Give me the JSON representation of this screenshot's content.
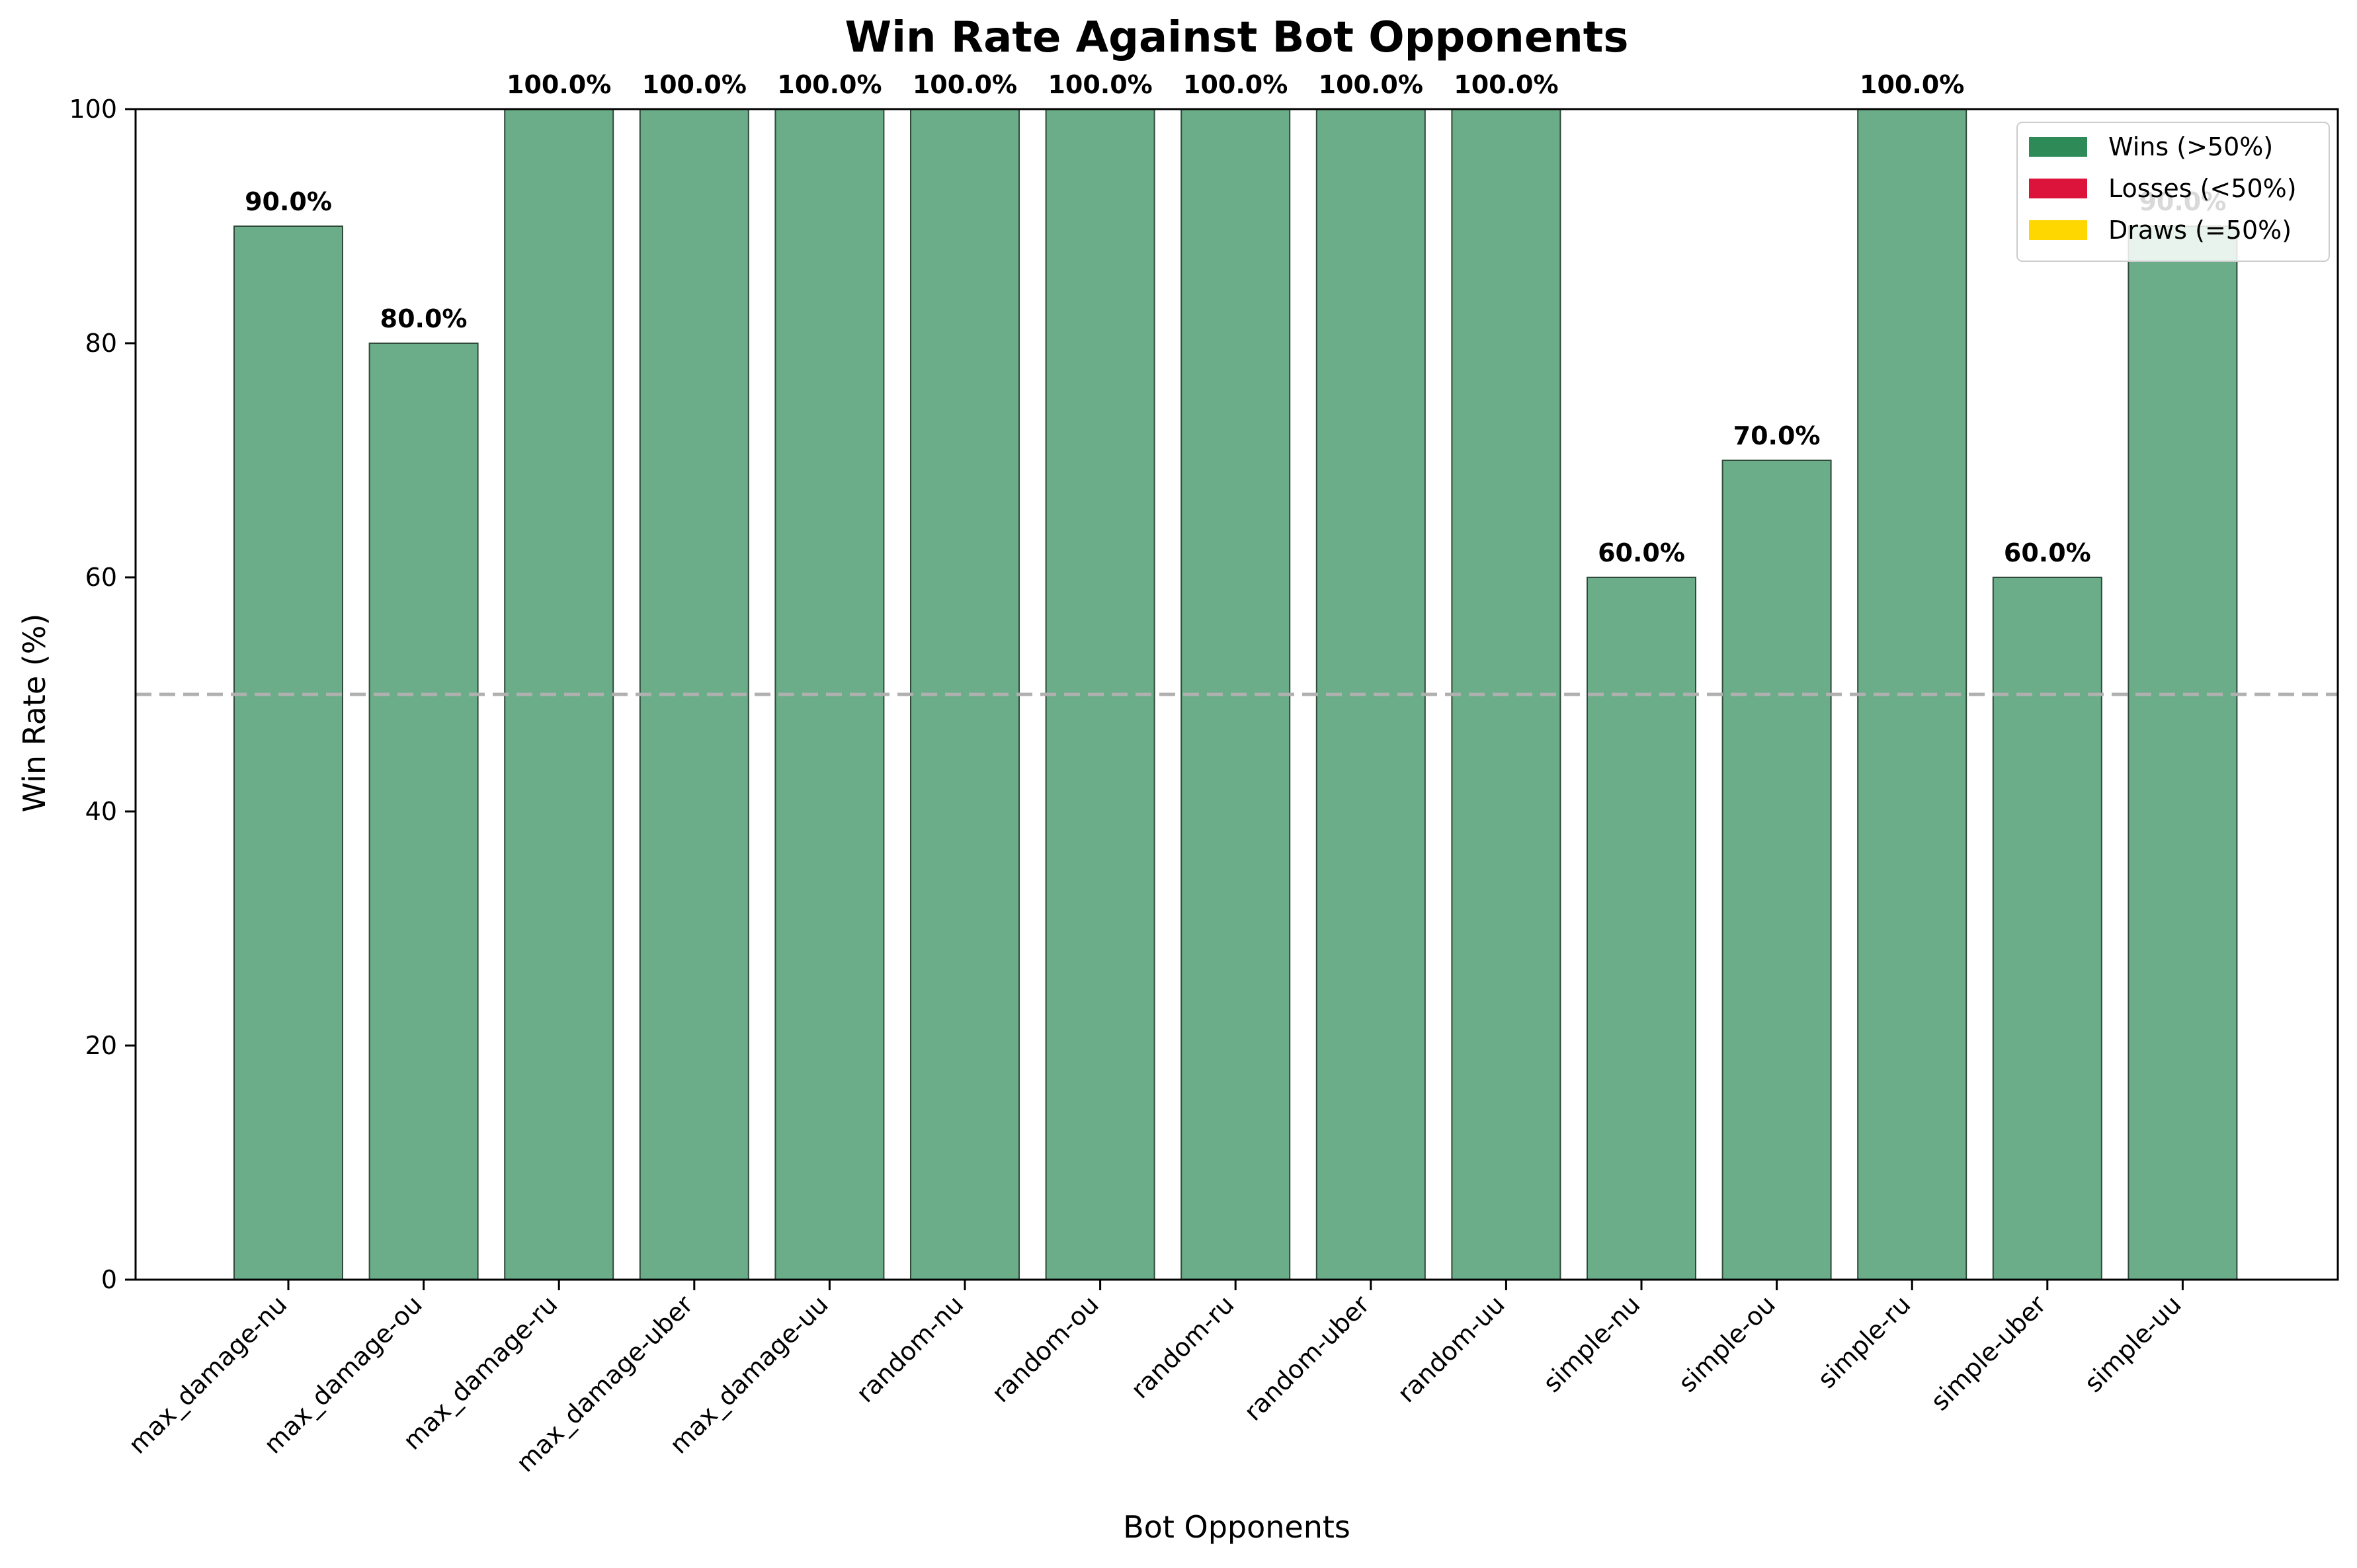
{
  "chart_data": {
    "type": "bar",
    "title": "Win Rate Against Bot Opponents",
    "xlabel": "Bot Opponents",
    "ylabel": "Win Rate (%)",
    "ylim": [
      0,
      100
    ],
    "yticks": [
      0,
      20,
      40,
      60,
      80,
      100
    ],
    "categories": [
      "max_damage-nu",
      "max_damage-ou",
      "max_damage-ru",
      "max_damage-uber",
      "max_damage-uu",
      "random-nu",
      "random-ou",
      "random-ru",
      "random-uber",
      "random-uu",
      "simple-nu",
      "simple-ou",
      "simple-ru",
      "simple-uber",
      "simple-uu"
    ],
    "values": [
      90,
      80,
      100,
      100,
      100,
      100,
      100,
      100,
      100,
      100,
      60,
      70,
      100,
      60,
      90
    ],
    "value_labels": [
      "90.0%",
      "80.0%",
      "100.0%",
      "100.0%",
      "100.0%",
      "100.0%",
      "100.0%",
      "100.0%",
      "100.0%",
      "100.0%",
      "60.0%",
      "70.0%",
      "100.0%",
      "60.0%",
      "90.0%"
    ],
    "reference_line": 50,
    "grid": false,
    "legend": {
      "placement": "top-right",
      "entries": [
        {
          "label": "Wins (>50%)",
          "color": "#2e8b57"
        },
        {
          "label": "Losses (<50%)",
          "color": "#dc143c"
        },
        {
          "label": "Draws (=50%)",
          "color": "#ffd700"
        }
      ]
    },
    "colors": {
      "bar_fill": "#6aad88",
      "bar_edge": "#2f4a3a",
      "reference_line": "#b0b0b0"
    }
  }
}
